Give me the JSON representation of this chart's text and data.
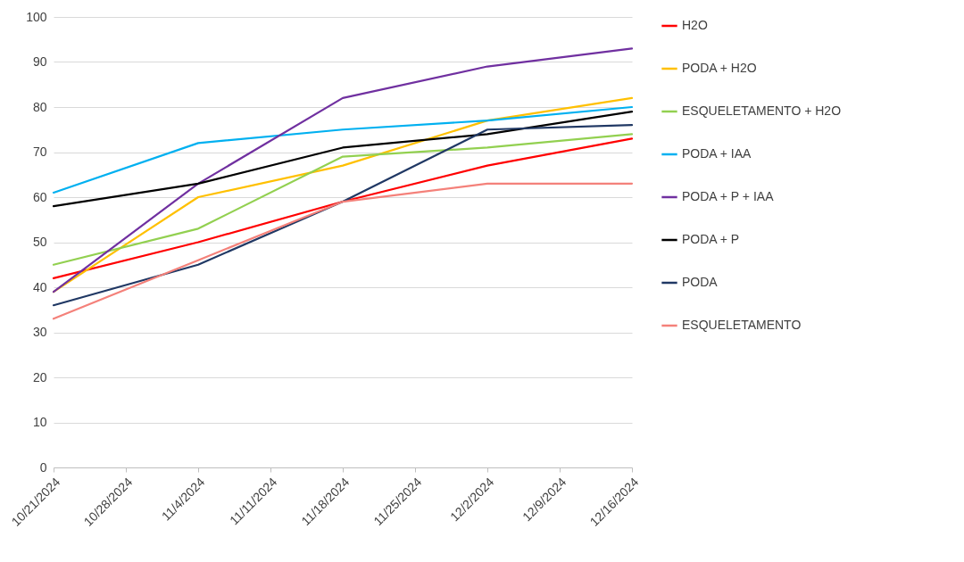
{
  "chart_data": {
    "type": "line",
    "x": [
      "2024-10-21",
      "2024-11-04",
      "2024-11-18",
      "2024-12-02",
      "2024-12-16"
    ],
    "xlim": [
      "2024-10-21",
      "2024-12-16"
    ],
    "xticks": [
      {
        "value": "2024-10-21",
        "label": "10/21/2024"
      },
      {
        "value": "2024-10-28",
        "label": "10/28/2024"
      },
      {
        "value": "2024-11-04",
        "label": "11/4/2024"
      },
      {
        "value": "2024-11-11",
        "label": "11/11/2024"
      },
      {
        "value": "2024-11-18",
        "label": "11/18/2024"
      },
      {
        "value": "2024-11-25",
        "label": "11/25/2024"
      },
      {
        "value": "2024-12-02",
        "label": "12/2/2024"
      },
      {
        "value": "2024-12-09",
        "label": "12/9/2024"
      },
      {
        "value": "2024-12-16",
        "label": "12/16/2024"
      }
    ],
    "ylim": [
      0,
      100
    ],
    "yticks": [
      0,
      10,
      20,
      30,
      40,
      50,
      60,
      70,
      80,
      90,
      100
    ],
    "grid": "y",
    "legend": "right",
    "marker": "none",
    "line_style": "solid",
    "series": [
      {
        "name": "H2O",
        "color": "#ff0000",
        "values": [
          42,
          50,
          59,
          67,
          73
        ]
      },
      {
        "name": "PODA + H2O",
        "color": "#ffc000",
        "values": [
          39,
          60,
          67,
          77,
          82
        ]
      },
      {
        "name": "ESQUELETAMENTO + H2O",
        "color": "#92d050",
        "values": [
          45,
          53,
          69,
          71,
          74
        ]
      },
      {
        "name": "PODA + IAA",
        "color": "#00b0f0",
        "values": [
          61,
          72,
          75,
          77,
          80
        ]
      },
      {
        "name": "PODA + P + IAA",
        "color": "#7030a0",
        "values": [
          39,
          63,
          82,
          89,
          93
        ]
      },
      {
        "name": "PODA + P",
        "color": "#000000",
        "values": [
          58,
          63,
          71,
          74,
          79
        ]
      },
      {
        "name": "PODA",
        "color": "#203864",
        "values": [
          36,
          45,
          59,
          75,
          76
        ]
      },
      {
        "name": "ESQUELETAMENTO",
        "color": "#f4817a",
        "values": [
          33,
          46,
          59,
          63,
          63
        ]
      }
    ]
  }
}
